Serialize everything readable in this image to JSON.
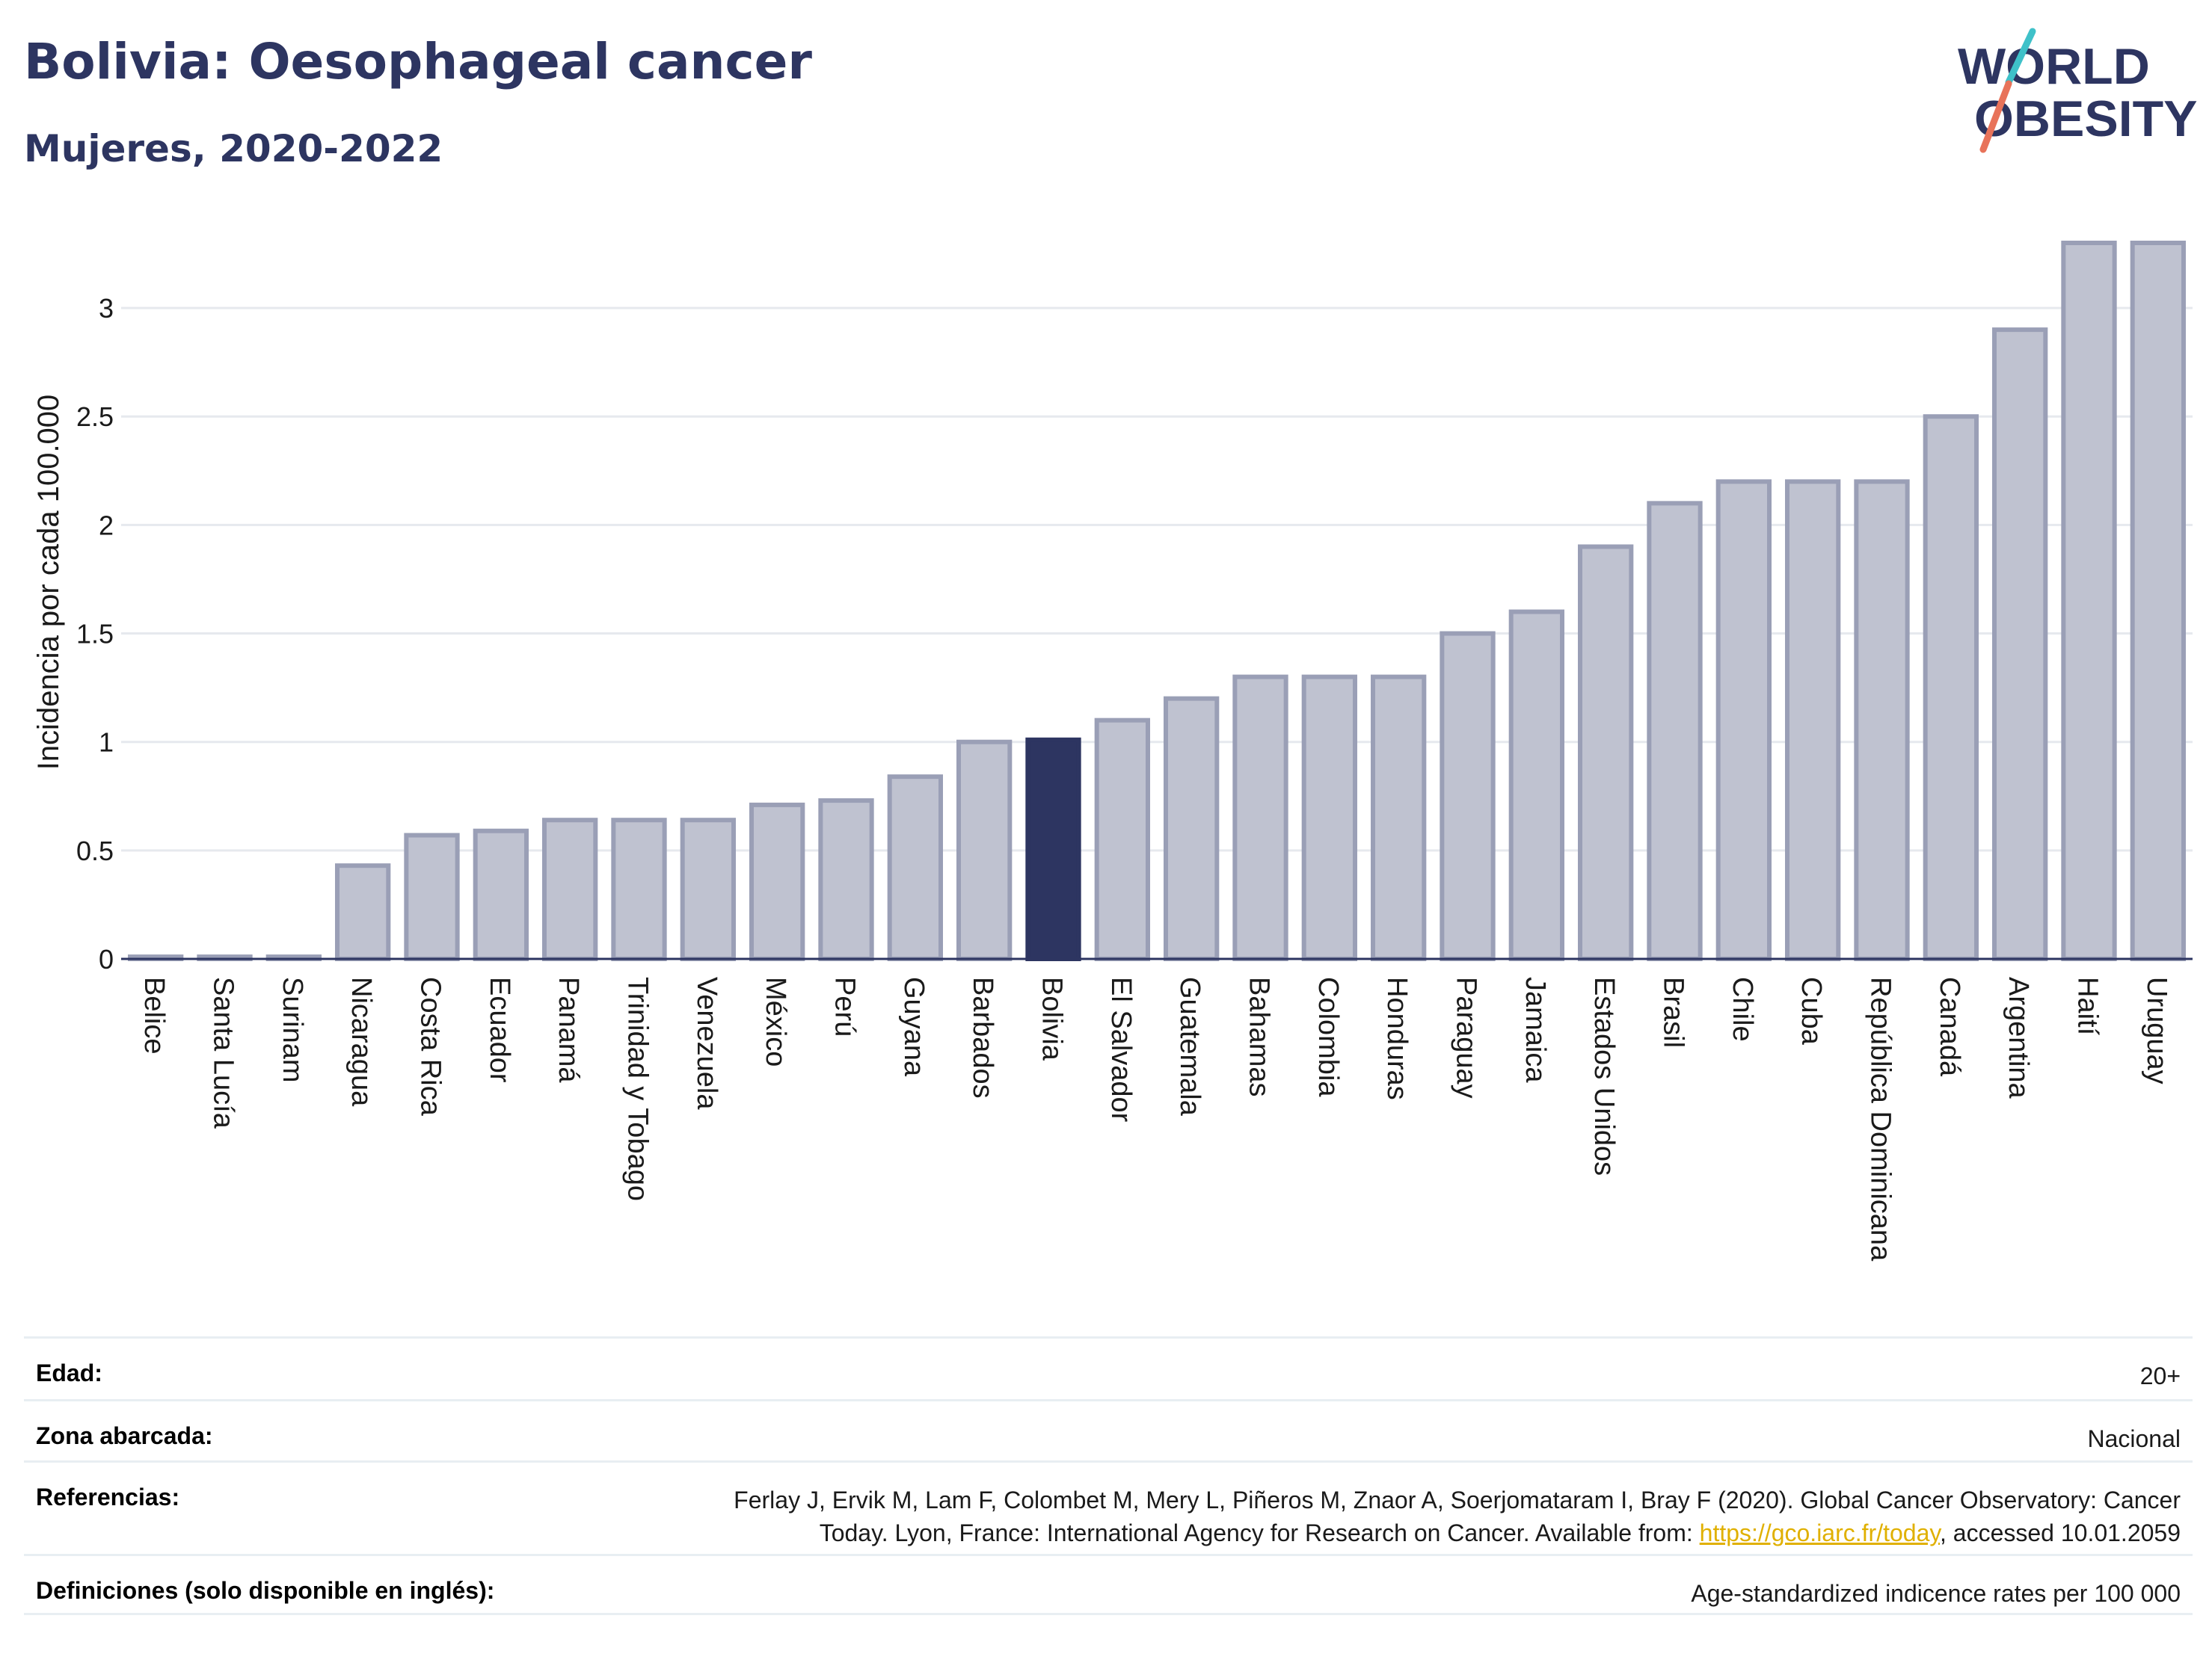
{
  "header": {
    "title": "Bolivia: Oesophageal cancer",
    "subtitle": "Mujeres, 2020-2022"
  },
  "logo": {
    "line1": "WORLD",
    "line2": "OBESITY"
  },
  "colors": {
    "bar": "#bfc2d0",
    "bar_border": "#9a9fb6",
    "highlight": "#2d3561",
    "grid": "#e6e9ee",
    "text": "#2d3561"
  },
  "chart_data": {
    "type": "bar",
    "ylabel": "Incidencia por cada 100.000",
    "ylim": [
      0,
      3.3
    ],
    "yticks": [
      0,
      0.5,
      1,
      1.5,
      2,
      2.5,
      3
    ],
    "ytick_labels": [
      "0",
      "0.5",
      "1",
      "1.5",
      "2",
      "2.5",
      "3"
    ],
    "grid": true,
    "highlight": "Bolivia",
    "categories": [
      "Belice",
      "Santa Lucía",
      "Surinam",
      "Nicaragua",
      "Costa Rica",
      "Ecuador",
      "Panamá",
      "Trinidad y Tobago",
      "Venezuela",
      "México",
      "Perú",
      "Guyana",
      "Barbados",
      "Bolivia",
      "El Salvador",
      "Guatemala",
      "Bahamas",
      "Colombia",
      "Honduras",
      "Paraguay",
      "Jamaica",
      "Estados Unidos",
      "Brasil",
      "Chile",
      "Cuba",
      "República Dominicana",
      "Canadá",
      "Argentina",
      "Haití",
      "Uruguay"
    ],
    "values": [
      0.01,
      0.01,
      0.01,
      0.43,
      0.57,
      0.59,
      0.64,
      0.64,
      0.64,
      0.71,
      0.73,
      0.84,
      1.0,
      1.01,
      1.1,
      1.2,
      1.3,
      1.3,
      1.3,
      1.5,
      1.6,
      1.9,
      2.1,
      2.2,
      2.2,
      2.2,
      2.5,
      2.9,
      3.3,
      3.3
    ]
  },
  "meta": {
    "edad_label": "Edad:",
    "edad_value": "20+",
    "zona_label": "Zona abarcada:",
    "zona_value": "Nacional",
    "ref_label": "Referencias:",
    "ref_line1": "Ferlay J, Ervik M, Lam F, Colombet M, Mery L, Piñeros M, Znaor A, Soerjomataram I, Bray F (2020). Global Cancer Observatory: Cancer",
    "ref_line2_pre": "Today. Lyon, France: International Agency for Research on Cancer. Available from: ",
    "ref_link": "https://gco.iarc.fr/today",
    "ref_line2_post": ", accessed 10.01.2059",
    "def_label": "Definiciones (solo disponible en inglés):",
    "def_value": "Age-standardized indicence rates per 100 000"
  }
}
